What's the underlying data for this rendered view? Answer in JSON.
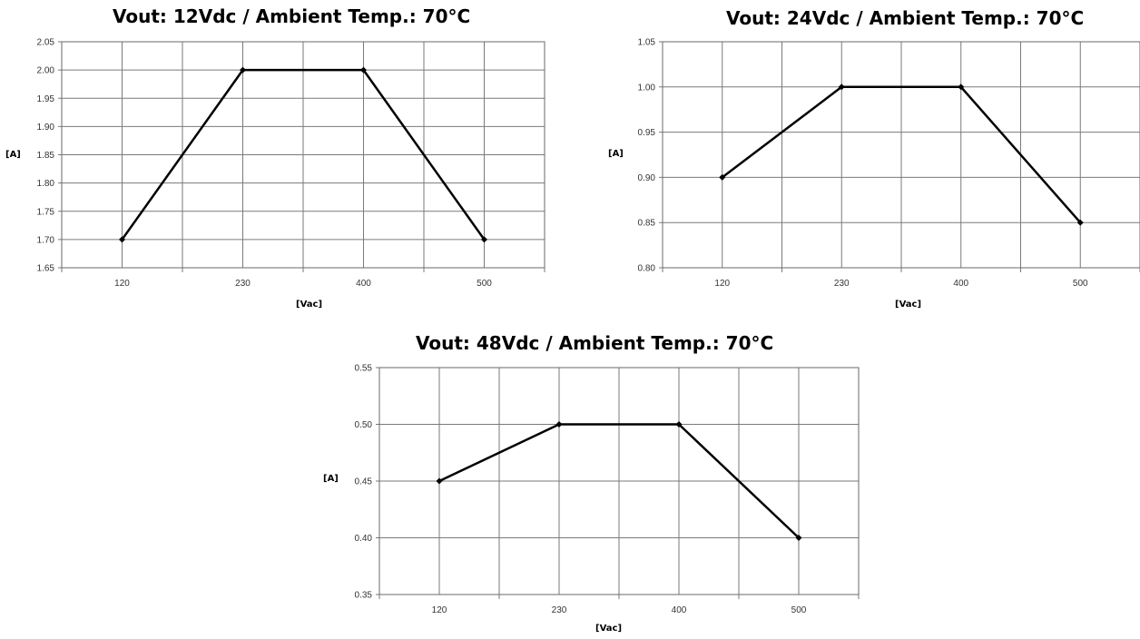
{
  "chart_data": [
    {
      "type": "line",
      "title": "Vout: 12Vdc / Ambient Temp.: 70°C",
      "xlabel": "[Vac]",
      "ylabel": "[A]",
      "categories": [
        "120",
        "230",
        "400",
        "500"
      ],
      "values": [
        1.7,
        2.0,
        2.0,
        1.7
      ],
      "ylim": [
        1.65,
        2.05
      ],
      "ystep": 0.05,
      "grid": true,
      "color": "#000000"
    },
    {
      "type": "line",
      "title": "Vout: 24Vdc / Ambient Temp.: 70°C",
      "xlabel": "[Vac]",
      "ylabel": "[A]",
      "categories": [
        "120",
        "230",
        "400",
        "500"
      ],
      "values": [
        0.9,
        1.0,
        1.0,
        0.85
      ],
      "ylim": [
        0.8,
        1.05
      ],
      "ystep": 0.05,
      "grid": true,
      "color": "#000000"
    },
    {
      "type": "line",
      "title": "Vout: 48Vdc / Ambient Temp.: 70°C",
      "xlabel": "[Vac]",
      "ylabel": "[A]",
      "categories": [
        "120",
        "230",
        "400",
        "500"
      ],
      "values": [
        0.45,
        0.5,
        0.5,
        0.4
      ],
      "ylim": [
        0.35,
        0.55
      ],
      "ystep": 0.05,
      "grid": true,
      "color": "#000000"
    }
  ]
}
